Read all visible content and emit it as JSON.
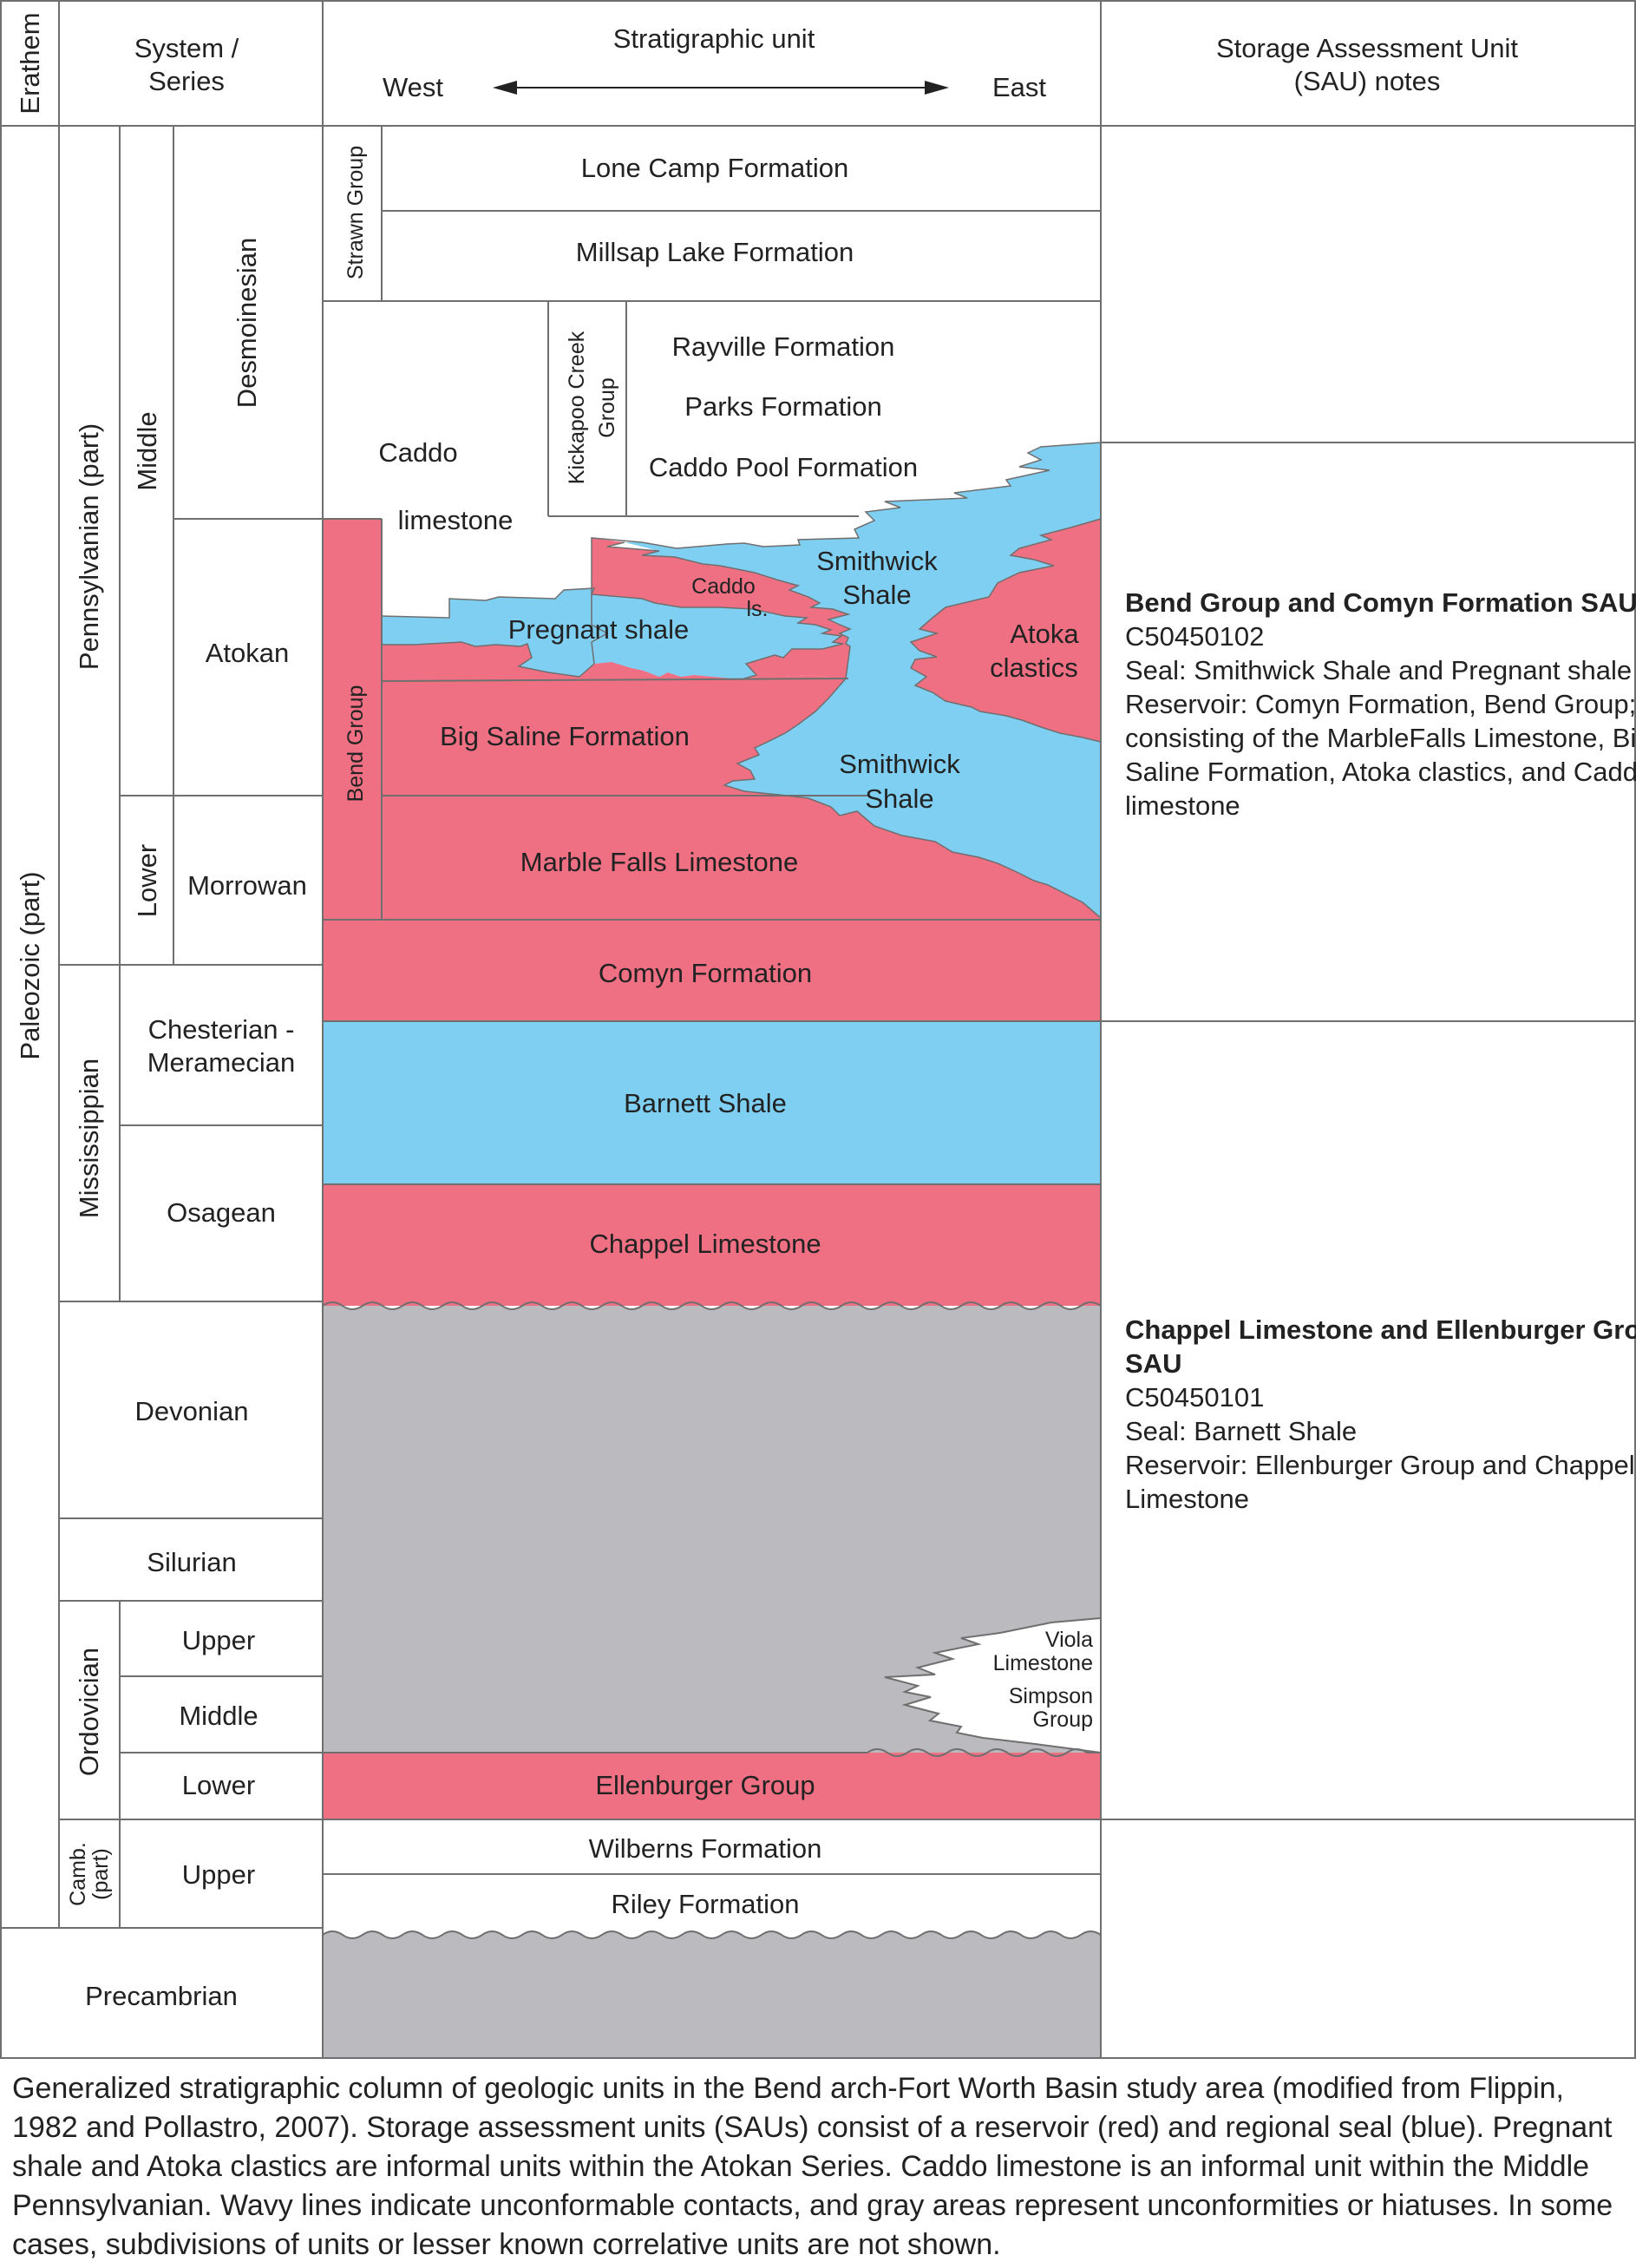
{
  "header": {
    "erathem": "Erathem",
    "system_series_1": "System /",
    "system_series_2": "Series",
    "stratigraphic_unit": "Stratigraphic unit",
    "west": "West",
    "east": "East",
    "sau_notes_1": "Storage Assessment Unit",
    "sau_notes_2": "(SAU) notes"
  },
  "chronostrat": {
    "paleozoic": "Paleozoic (part)",
    "pennsylvanian": "Pennsylvanian (part)",
    "middle": "Middle",
    "lower": "Lower",
    "desmoinesian": "Desmoinesian",
    "atokan": "Atokan",
    "morrowan": "Morrowan",
    "mississippian": "Mississippian",
    "chesterian_1": "Chesterian -",
    "chesterian_2": "Meramecian",
    "osagean": "Osagean",
    "devonian": "Devonian",
    "silurian": "Silurian",
    "ordovician": "Ordovician",
    "ord_upper": "Upper",
    "ord_middle": "Middle",
    "ord_lower": "Lower",
    "camb_1": "Camb.",
    "camb_2": "(part)",
    "camb_upper": "Upper",
    "precambrian": "Precambrian"
  },
  "units": {
    "strawn_group": "Strawn Group",
    "lone_camp": "Lone Camp Formation",
    "millsap_lake": "Millsap Lake Formation",
    "kickapoo_1": "Kickapoo Creek",
    "kickapoo_2": "Group",
    "rayville": "Rayville Formation",
    "parks": "Parks Formation",
    "caddo_pool": "Caddo Pool Formation",
    "caddo_1": "Caddo",
    "caddo_2": "limestone",
    "smithwick_upper_1": "Smithwick",
    "smithwick_upper_2": "Shale",
    "caddo_ls_1": "Caddo",
    "caddo_ls_2": "ls.",
    "pregnant_shale": "Pregnant shale",
    "atoka_1": "Atoka",
    "atoka_2": "clastics",
    "bend_group": "Bend Group",
    "big_saline": "Big Saline Formation",
    "smithwick_lower_1": "Smithwick",
    "smithwick_lower_2": "Shale",
    "marble_falls": "Marble Falls Limestone",
    "comyn": "Comyn Formation",
    "barnett": "Barnett Shale",
    "chappel": "Chappel Limestone",
    "viola_1": "Viola",
    "viola_2": "Limestone",
    "simpson_1": "Simpson",
    "simpson_2": "Group",
    "ellenburger": "Ellenburger Group",
    "wilberns": "Wilberns Formation",
    "riley": "Riley Formation"
  },
  "sau_notes": {
    "bend_title": "Bend Group and Comyn Formation SAU",
    "bend_code": "C50450102",
    "bend_seal": "Seal: Smithwick Shale and Pregnant shale",
    "bend_res_1": "Reservoir: Comyn Formation, Bend Group;",
    "bend_res_2": "consisting of the MarbleFalls Limestone, Big",
    "bend_res_3": "Saline Formation, Atoka clastics, and Caddo",
    "bend_res_4": "limestone",
    "chappel_title_1": "Chappel Limestone and Ellenburger Group",
    "chappel_title_2": "SAU",
    "chappel_code": "C50450101",
    "chappel_seal": "Seal: Barnett Shale",
    "chappel_res_1": "Reservoir: Ellenburger Group and Chappel",
    "chappel_res_2": "Limestone"
  },
  "caption": "Generalized stratigraphic column of geologic units in the Bend arch-Fort Worth Basin study area (modified from Flippin, 1982 and Pollastro, 2007). Storage assessment units (SAUs) consist of a reservoir (red) and regional seal (blue). Pregnant shale and Atoka clastics are informal units within the Atokan Series. Caddo limestone is an informal unit within the Middle Pennsylvanian. Wavy lines indicate unconformable contacts, and gray areas represent unconformities or hiatuses. In some cases, subdivisions of units or lesser known correlative units are not shown.",
  "colors": {
    "reservoir_red": "#f07083",
    "seal_blue": "#7ecff2",
    "hiatus_gray": "#bbbbbf",
    "line": "#6f6f6f"
  }
}
